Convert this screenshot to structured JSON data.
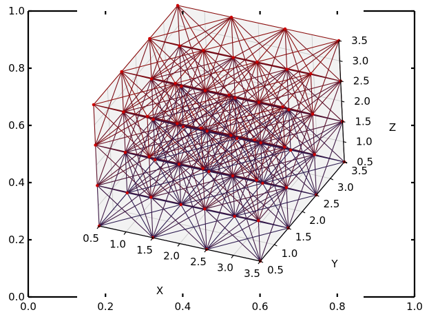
{
  "chart_data": {
    "type": "network3d",
    "outer_axes": {
      "xticks": [
        "0.0",
        "0.2",
        "0.4",
        "0.6",
        "0.8",
        "1.0"
      ],
      "yticks": [
        "0.0",
        "0.2",
        "0.4",
        "0.6",
        "0.8",
        "1.0"
      ]
    },
    "axis3d": {
      "xlabel": "X",
      "ylabel": "Y",
      "zlabel": "Z",
      "xticks": [
        "0.5",
        "1.0",
        "1.5",
        "2.0",
        "2.5",
        "3.0",
        "3.5"
      ],
      "yticks": [
        "0.5",
        "1.0",
        "1.5",
        "2.0",
        "2.5",
        "3.0",
        "3.5"
      ],
      "zticks": [
        "0.5",
        "1.0",
        "1.5",
        "2.0",
        "2.5",
        "3.0",
        "3.5"
      ],
      "xlim": [
        0.5,
        3.5
      ],
      "ylim": [
        0.5,
        3.5
      ],
      "zlim": [
        0.5,
        3.5
      ],
      "grid": true
    },
    "nodes": {
      "grid_values": [
        0.5,
        1.5,
        2.5,
        3.5
      ],
      "count": 64
    },
    "edges": {
      "rule": "connect nodes whose index offset in each of x, y, z is at most 1",
      "colormap": "dark purple (low z) to dark red (high z)"
    },
    "colors": {
      "edge_low": "#2b1a4f",
      "edge_high": "#8b0a0a",
      "node": "#cc0000",
      "pane": "#f2f2f2",
      "grid": "#c8c8c8"
    }
  }
}
